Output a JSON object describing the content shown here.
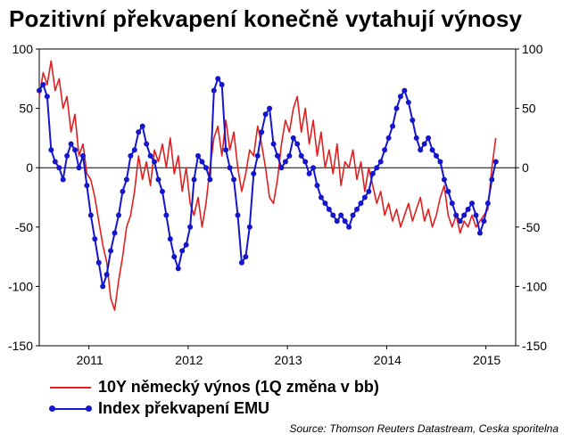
{
  "chart_data": {
    "type": "line",
    "title": "Pozitivní překvapení konečně vytahují výnosy",
    "source": "Source: Thomson Reuters Datastream, Ceska sporitelna",
    "ylim": [
      -150,
      100
    ],
    "yticks": [
      -150,
      -100,
      -50,
      0,
      50,
      100
    ],
    "xlim": [
      2010.5,
      2015.3
    ],
    "xticks": [
      2011,
      2012,
      2013,
      2014,
      2015
    ],
    "xlabels": [
      "2011",
      "2012",
      "2013",
      "2014",
      "2015"
    ],
    "grid": false,
    "legend_position": "bottom-left",
    "series": [
      {
        "name": "10Y německý výnos (1Q změna v bb)",
        "color": "#e02020",
        "markers": false,
        "x": [
          2010.5,
          2010.54,
          2010.58,
          2010.62,
          2010.66,
          2010.7,
          2010.74,
          2010.78,
          2010.82,
          2010.86,
          2010.9,
          2010.94,
          2010.98,
          2011.02,
          2011.06,
          2011.1,
          2011.14,
          2011.18,
          2011.22,
          2011.26,
          2011.3,
          2011.34,
          2011.38,
          2011.42,
          2011.46,
          2011.5,
          2011.54,
          2011.58,
          2011.62,
          2011.66,
          2011.7,
          2011.74,
          2011.78,
          2011.82,
          2011.86,
          2011.9,
          2011.94,
          2011.98,
          2012.02,
          2012.06,
          2012.1,
          2012.14,
          2012.18,
          2012.22,
          2012.26,
          2012.3,
          2012.34,
          2012.38,
          2012.42,
          2012.46,
          2012.5,
          2012.54,
          2012.58,
          2012.62,
          2012.66,
          2012.7,
          2012.74,
          2012.78,
          2012.82,
          2012.86,
          2012.9,
          2012.94,
          2012.98,
          2013.02,
          2013.06,
          2013.1,
          2013.14,
          2013.18,
          2013.22,
          2013.26,
          2013.3,
          2013.34,
          2013.38,
          2013.42,
          2013.46,
          2013.5,
          2013.54,
          2013.58,
          2013.62,
          2013.66,
          2013.7,
          2013.74,
          2013.78,
          2013.82,
          2013.86,
          2013.9,
          2013.94,
          2013.98,
          2014.02,
          2014.06,
          2014.1,
          2014.14,
          2014.18,
          2014.22,
          2014.26,
          2014.3,
          2014.34,
          2014.38,
          2014.42,
          2014.46,
          2014.5,
          2014.54,
          2014.58,
          2014.62,
          2014.66,
          2014.7,
          2014.74,
          2014.78,
          2014.82,
          2014.86,
          2014.9,
          2014.94,
          2014.98,
          2015.02,
          2015.06,
          2015.1
        ],
        "y": [
          60,
          80,
          70,
          90,
          65,
          75,
          50,
          60,
          30,
          45,
          10,
          20,
          -5,
          -10,
          -25,
          -45,
          -65,
          -80,
          -110,
          -120,
          -95,
          -75,
          -50,
          -40,
          -20,
          10,
          -10,
          5,
          -15,
          15,
          5,
          20,
          0,
          25,
          -5,
          10,
          -20,
          0,
          -30,
          -40,
          -25,
          -50,
          -30,
          0,
          25,
          35,
          10,
          40,
          15,
          30,
          0,
          -20,
          -5,
          15,
          10,
          35,
          20,
          0,
          -25,
          -30,
          -10,
          20,
          40,
          30,
          50,
          60,
          30,
          50,
          20,
          40,
          10,
          30,
          0,
          15,
          -5,
          20,
          -15,
          5,
          0,
          15,
          -10,
          5,
          -20,
          0,
          -15,
          -30,
          -20,
          -40,
          -30,
          -45,
          -35,
          -50,
          -40,
          -30,
          -45,
          -35,
          -25,
          -45,
          -35,
          -50,
          -40,
          -25,
          -15,
          -40,
          -50,
          -40,
          -55,
          -45,
          -50,
          -40,
          -50,
          -45,
          -40,
          -35,
          0,
          25
        ]
      },
      {
        "name": "Index překvapení EMU",
        "color": "#1515cc",
        "markers": true,
        "x": [
          2010.5,
          2010.54,
          2010.58,
          2010.62,
          2010.66,
          2010.7,
          2010.74,
          2010.78,
          2010.82,
          2010.86,
          2010.9,
          2010.94,
          2010.98,
          2011.02,
          2011.06,
          2011.1,
          2011.14,
          2011.18,
          2011.22,
          2011.26,
          2011.3,
          2011.34,
          2011.38,
          2011.42,
          2011.46,
          2011.5,
          2011.54,
          2011.58,
          2011.62,
          2011.66,
          2011.7,
          2011.74,
          2011.78,
          2011.82,
          2011.86,
          2011.9,
          2011.94,
          2011.98,
          2012.02,
          2012.06,
          2012.1,
          2012.14,
          2012.18,
          2012.22,
          2012.26,
          2012.3,
          2012.34,
          2012.38,
          2012.42,
          2012.46,
          2012.5,
          2012.54,
          2012.58,
          2012.62,
          2012.66,
          2012.7,
          2012.74,
          2012.78,
          2012.82,
          2012.86,
          2012.9,
          2012.94,
          2012.98,
          2013.02,
          2013.06,
          2013.1,
          2013.14,
          2013.18,
          2013.22,
          2013.26,
          2013.3,
          2013.34,
          2013.38,
          2013.42,
          2013.46,
          2013.5,
          2013.54,
          2013.58,
          2013.62,
          2013.66,
          2013.7,
          2013.74,
          2013.78,
          2013.82,
          2013.86,
          2013.9,
          2013.94,
          2013.98,
          2014.02,
          2014.06,
          2014.1,
          2014.14,
          2014.18,
          2014.22,
          2014.26,
          2014.3,
          2014.34,
          2014.38,
          2014.42,
          2014.46,
          2014.5,
          2014.54,
          2014.58,
          2014.62,
          2014.66,
          2014.7,
          2014.74,
          2014.78,
          2014.82,
          2014.86,
          2014.9,
          2014.94,
          2014.98,
          2015.02,
          2015.06,
          2015.1
        ],
        "y": [
          65,
          70,
          60,
          15,
          5,
          0,
          -10,
          10,
          20,
          15,
          0,
          10,
          -15,
          -40,
          -60,
          -80,
          -100,
          -90,
          -70,
          -55,
          -40,
          -20,
          -10,
          10,
          15,
          30,
          35,
          20,
          10,
          5,
          -10,
          -20,
          -40,
          -60,
          -75,
          -85,
          -70,
          -65,
          -50,
          -10,
          10,
          5,
          0,
          -10,
          65,
          75,
          70,
          15,
          0,
          -10,
          -40,
          -80,
          -75,
          -50,
          -5,
          10,
          30,
          45,
          50,
          20,
          10,
          0,
          5,
          10,
          25,
          20,
          10,
          5,
          -5,
          0,
          -15,
          -25,
          -30,
          -35,
          -40,
          -45,
          -40,
          -45,
          -50,
          -40,
          -35,
          -30,
          -25,
          -20,
          -5,
          0,
          5,
          15,
          25,
          35,
          50,
          60,
          65,
          55,
          40,
          25,
          15,
          20,
          25,
          15,
          10,
          5,
          -10,
          -20,
          -30,
          -40,
          -45,
          -40,
          -35,
          -30,
          -40,
          -55,
          -45,
          -30,
          -10,
          5
        ]
      }
    ]
  }
}
